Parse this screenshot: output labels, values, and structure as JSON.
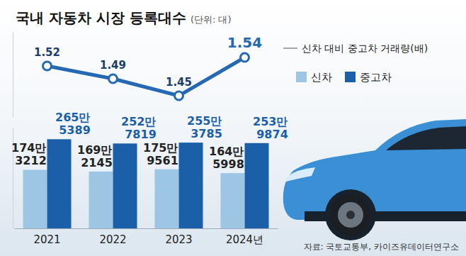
{
  "chart_data": {
    "type": "bar",
    "title": "국내 자동차 시장 등록대수",
    "subtitle": "(단위: 대)",
    "source": "자료: 국토교통부, 카이즈유데이터연구소",
    "categories": [
      "2021",
      "2022",
      "2023",
      "2024년"
    ],
    "series": [
      {
        "name": "신차",
        "color": "#9cc6e4",
        "values": [
          1743212,
          1692145,
          1759561,
          1645998
        ],
        "value_labels": [
          "174만 3212",
          "169만 2145",
          "175만 9561",
          "164만 5998"
        ]
      },
      {
        "name": "중고차",
        "color": "#1b5fa9",
        "values": [
          2655389,
          2527819,
          2553785,
          2539874
        ],
        "value_labels": [
          "265만 5389",
          "252만 7819",
          "255만 3785",
          "253만 9874"
        ]
      },
      {
        "name": "신차 대비 중고차 거래량(배)",
        "type": "line",
        "axis": "y2",
        "color": "#2569b3",
        "marker": "circle",
        "values": [
          1.52,
          1.49,
          1.45,
          1.54
        ]
      }
    ],
    "ylim": [
      0,
      3000000
    ],
    "y2lim": [
      1.4,
      1.6
    ],
    "data_labels": true,
    "tick_labels": "x",
    "grid": false
  }
}
